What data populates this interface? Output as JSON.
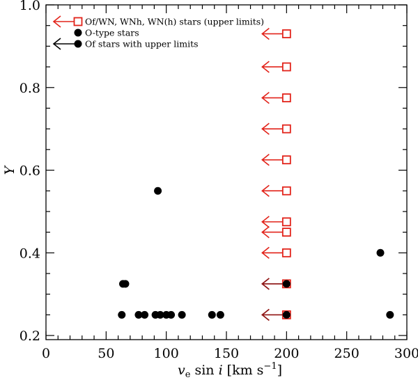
{
  "chart_data": {
    "type": "scatter",
    "xlim": [
      0,
      300
    ],
    "ylim": [
      0.19,
      1.0
    ],
    "x_ticks": [
      0,
      50,
      100,
      150,
      200,
      250,
      300
    ],
    "x_tick_labels": [
      "0",
      "50",
      "100",
      "150",
      "200",
      "250",
      "300"
    ],
    "y_ticks": [
      0.2,
      0.4,
      0.6,
      0.8,
      1.0
    ],
    "y_tick_labels": [
      "0.2",
      "0.4",
      "0.6",
      "0.8",
      "1.0"
    ],
    "x_minor_step": 10,
    "y_minor_step": 0.05,
    "xlabel": {
      "v": "v",
      "sub": "e",
      "sin": " sin ",
      "i": "i",
      "unit": " [km s",
      "exp": "−1",
      "close": "]"
    },
    "ylabel": "Y",
    "legend_position": "top-left",
    "legend": [
      {
        "label": "Of/WN, WNh, WN(h) stars (upper limits)",
        "marker": "open-square-arrow",
        "color": "#e2231a"
      },
      {
        "label": "O-type stars",
        "marker": "filled-circle",
        "color": "#000000"
      },
      {
        "label": "Of stars with upper limits",
        "marker": "filled-circle-arrow",
        "color": "#000000"
      }
    ],
    "series": [
      {
        "name": "Of/WN, WNh, WN(h) stars (upper limits)",
        "marker": "open-square-arrow",
        "color": "#e2231a",
        "points": [
          {
            "x": 200,
            "y": 0.93
          },
          {
            "x": 200,
            "y": 0.85
          },
          {
            "x": 200,
            "y": 0.775
          },
          {
            "x": 200,
            "y": 0.7
          },
          {
            "x": 200,
            "y": 0.625
          },
          {
            "x": 200,
            "y": 0.55
          },
          {
            "x": 200,
            "y": 0.475
          },
          {
            "x": 200,
            "y": 0.45
          },
          {
            "x": 200,
            "y": 0.4
          },
          {
            "x": 200,
            "y": 0.325
          },
          {
            "x": 200,
            "y": 0.25
          }
        ]
      },
      {
        "name": "O-type stars",
        "marker": "filled-circle",
        "color": "#000000",
        "points": [
          {
            "x": 63,
            "y": 0.25
          },
          {
            "x": 77,
            "y": 0.25
          },
          {
            "x": 82,
            "y": 0.25
          },
          {
            "x": 91,
            "y": 0.25
          },
          {
            "x": 95,
            "y": 0.25
          },
          {
            "x": 100,
            "y": 0.25
          },
          {
            "x": 104,
            "y": 0.25
          },
          {
            "x": 113,
            "y": 0.25
          },
          {
            "x": 138,
            "y": 0.25
          },
          {
            "x": 145,
            "y": 0.25
          },
          {
            "x": 286,
            "y": 0.25
          },
          {
            "x": 64,
            "y": 0.325
          },
          {
            "x": 66,
            "y": 0.325
          },
          {
            "x": 93,
            "y": 0.55
          },
          {
            "x": 278,
            "y": 0.4
          }
        ]
      },
      {
        "name": "Of stars with upper limits",
        "marker": "filled-circle-arrow",
        "color": "#000000",
        "points": [
          {
            "x": 200,
            "y": 0.325
          },
          {
            "x": 200,
            "y": 0.25
          }
        ]
      }
    ]
  }
}
